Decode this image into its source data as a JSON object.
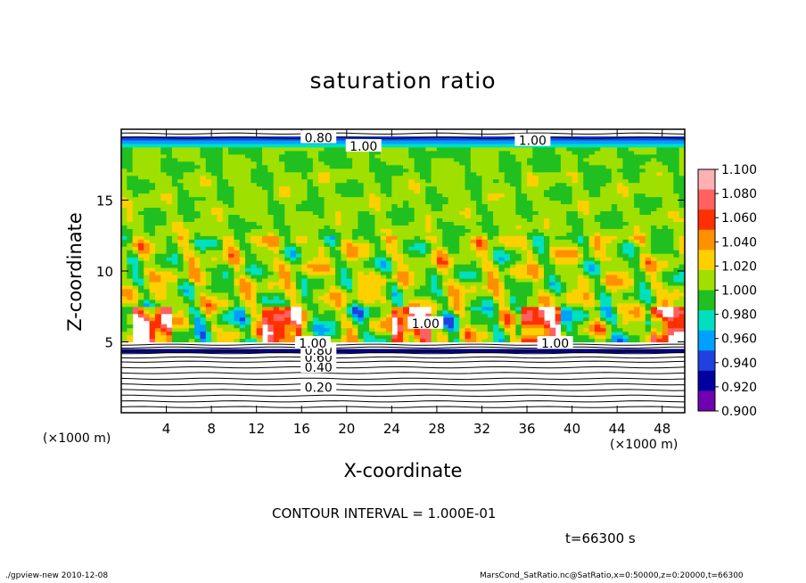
{
  "chart_data": {
    "type": "heatmap",
    "title": "saturation ratio",
    "xlabel": "X-coordinate",
    "ylabel": "Z-coordinate",
    "x_unit_label": "(×1000 m)",
    "z_unit_label": "(×1000 m)",
    "xlim": [
      0,
      50
    ],
    "ylim": [
      0,
      20
    ],
    "x_ticks": [
      4,
      8,
      12,
      16,
      20,
      24,
      28,
      32,
      36,
      40,
      44,
      48
    ],
    "y_ticks": [
      5,
      10,
      15
    ],
    "colorbar": {
      "levels": [
        "1.100",
        "1.080",
        "1.060",
        "1.040",
        "1.020",
        "1.000",
        "0.980",
        "0.960",
        "0.940",
        "0.920",
        "0.900"
      ],
      "colors": [
        "#ffb0b0",
        "#ff6060",
        "#ff3000",
        "#ff9000",
        "#ffd000",
        "#a0e000",
        "#20c020",
        "#00e0c0",
        "#00a0ff",
        "#2040e0",
        "#0000a0",
        "#7000b0"
      ]
    },
    "contour_labels": [
      {
        "text": "0.20",
        "x": 17.5,
        "z": 1.8
      },
      {
        "text": "0.40",
        "x": 17.5,
        "z": 3.2
      },
      {
        "text": "0.60",
        "x": 17.5,
        "z": 3.9
      },
      {
        "text": "0.80",
        "x": 17.5,
        "z": 4.4
      },
      {
        "text": "1.00",
        "x": 17.0,
        "z": 4.9
      },
      {
        "text": "1.00",
        "x": 27.0,
        "z": 6.3
      },
      {
        "text": "1.00",
        "x": 38.5,
        "z": 4.9
      },
      {
        "text": "0.80",
        "x": 17.5,
        "z": 19.4
      },
      {
        "text": "1.00",
        "x": 21.5,
        "z": 18.8
      },
      {
        "text": "1.00",
        "x": 36.5,
        "z": 19.2
      }
    ],
    "contour_interval_text": "CONTOUR INTERVAL = 1.000E-01",
    "time_text": "t=66300 s"
  },
  "footer": {
    "left": "./gpview-new   2010-12-08",
    "right": "MarsCond_SatRatio.nc@SatRatio,x=0:50000,z=0:20000,t=66300"
  }
}
